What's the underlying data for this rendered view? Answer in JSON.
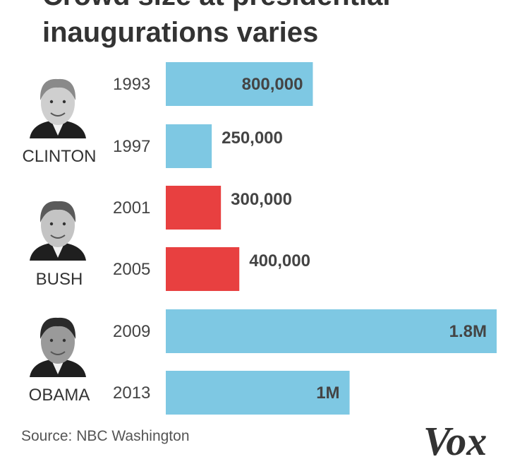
{
  "title_lines": [
    "Crowd size at presidential",
    "inaugurations varies"
  ],
  "source": "Source: NBC Washington",
  "logo": "Vox",
  "colors": {
    "democrat": "#7ec8e3",
    "republican": "#e84040",
    "text": "#333333"
  },
  "presidents": [
    {
      "name": "CLINTON",
      "portrait_icon": "clinton-portrait-icon",
      "years": [
        "1993",
        "1997"
      ]
    },
    {
      "name": "BUSH",
      "portrait_icon": "bush-portrait-icon",
      "years": [
        "2001",
        "2005"
      ]
    },
    {
      "name": "OBAMA",
      "portrait_icon": "obama-portrait-icon",
      "years": [
        "2009",
        "2013"
      ]
    }
  ],
  "chart_data": {
    "type": "bar",
    "orientation": "horizontal",
    "title": "Crowd size at presidential inaugurations varies",
    "categories": [
      "1993",
      "1997",
      "2001",
      "2005",
      "2009",
      "2013"
    ],
    "values": [
      800000,
      250000,
      300000,
      400000,
      1800000,
      1000000
    ],
    "value_labels": [
      "800,000",
      "250,000",
      "300,000",
      "400,000",
      "1.8M",
      "1M"
    ],
    "party": [
      "democrat",
      "democrat",
      "republican",
      "republican",
      "democrat",
      "democrat"
    ],
    "label_inside": [
      true,
      false,
      false,
      false,
      true,
      true
    ],
    "xlim": [
      0,
      1800000
    ],
    "grid": false,
    "legend": "none"
  }
}
